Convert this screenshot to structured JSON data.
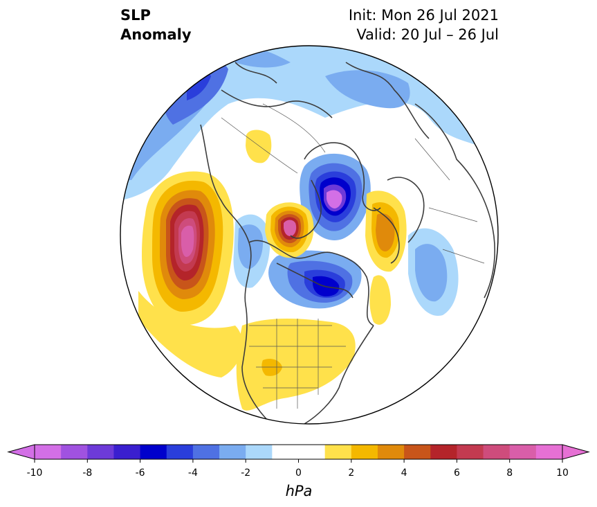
{
  "title": {
    "left": "SLP\nAnomaly",
    "right": "Init: Mon 26 Jul 2021\nValid: 20 Jul – 26 Jul"
  },
  "colorbar": {
    "unit": "hPa",
    "ticks": [
      "-10",
      "-8",
      "-6",
      "-4",
      "-2",
      "0",
      "2",
      "4",
      "6",
      "8",
      "10"
    ],
    "colors": [
      "#d36fe6",
      "#a052e0",
      "#6d3ad8",
      "#3a1fcf",
      "#0000cc",
      "#2a3edb",
      "#4f71e3",
      "#7aacf0",
      "#abd8fb",
      "#ffffff",
      "#ffffff",
      "#ffe14b",
      "#f4b800",
      "#e08a0b",
      "#c8551a",
      "#b4242a",
      "#c33a50",
      "#ce4c7c",
      "#d95ea9",
      "#e670d4"
    ],
    "extend_low_color": "#d36fe6",
    "extend_high_color": "#e670d4"
  }
}
